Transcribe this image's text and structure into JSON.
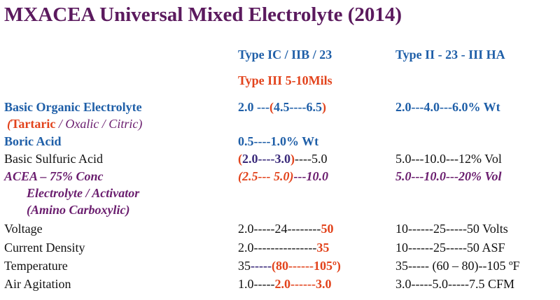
{
  "title": "MXACEA Universal Mixed Electrolyte (2014)",
  "header": {
    "col1": "Type IC / IIB / 23",
    "col2": "Type II - 23 - III HA",
    "sub": "Type III 5-10Mils"
  },
  "rows": [
    {
      "label": [
        "Basic Organic Electrolyte"
      ],
      "col1": [
        "2.0 ---",
        "(",
        "4.5----6.5",
        ")"
      ],
      "col2": [
        "2.0---4.0---6.0% Wt"
      ]
    },
    {
      "label": [
        "(",
        "Tartaric",
        " / Oxalic / Citric)"
      ]
    },
    {
      "label": [
        "Boric Acid"
      ],
      "col1": [
        "0.5----1.0% Wt"
      ]
    },
    {
      "label": [
        "Basic Sulfuric Acid"
      ],
      "col1": [
        "(",
        "2.0----3.0",
        ")",
        "----5.0"
      ],
      "col2": [
        "5.0---10.0---12% Vol"
      ]
    },
    {
      "label": [
        "ACEA – 75% Conc"
      ],
      "col1": [
        "(2.5--- 5.0)",
        "---10.0"
      ],
      "col2": [
        "5.0---10.0---20% Vol"
      ]
    },
    {
      "label": [
        "Electrolyte / Activator"
      ]
    },
    {
      "label": [
        "(Amino Carboxylic)"
      ]
    },
    {
      "label": [
        "Voltage"
      ],
      "col1": [
        "2.0-----24--------",
        "50"
      ],
      "col2": [
        "10------25-----50 Volts"
      ]
    },
    {
      "label": [
        "Current Density"
      ],
      "col1": [
        "2.0---------------",
        "35"
      ],
      "col2": [
        "10------25-----50 ASF"
      ]
    },
    {
      "label": [
        "Temperature"
      ],
      "col1": [
        "35",
        "-----",
        "(80------105º)"
      ],
      "col2": [
        "35----- (60 – 80)--105 ºF"
      ]
    },
    {
      "label": [
        "Air Agitation"
      ],
      "col1": [
        "1.0-----",
        "2.0------3.0"
      ],
      "col2": [
        "3.0-----5.0-----7.5 CFM"
      ]
    }
  ]
}
